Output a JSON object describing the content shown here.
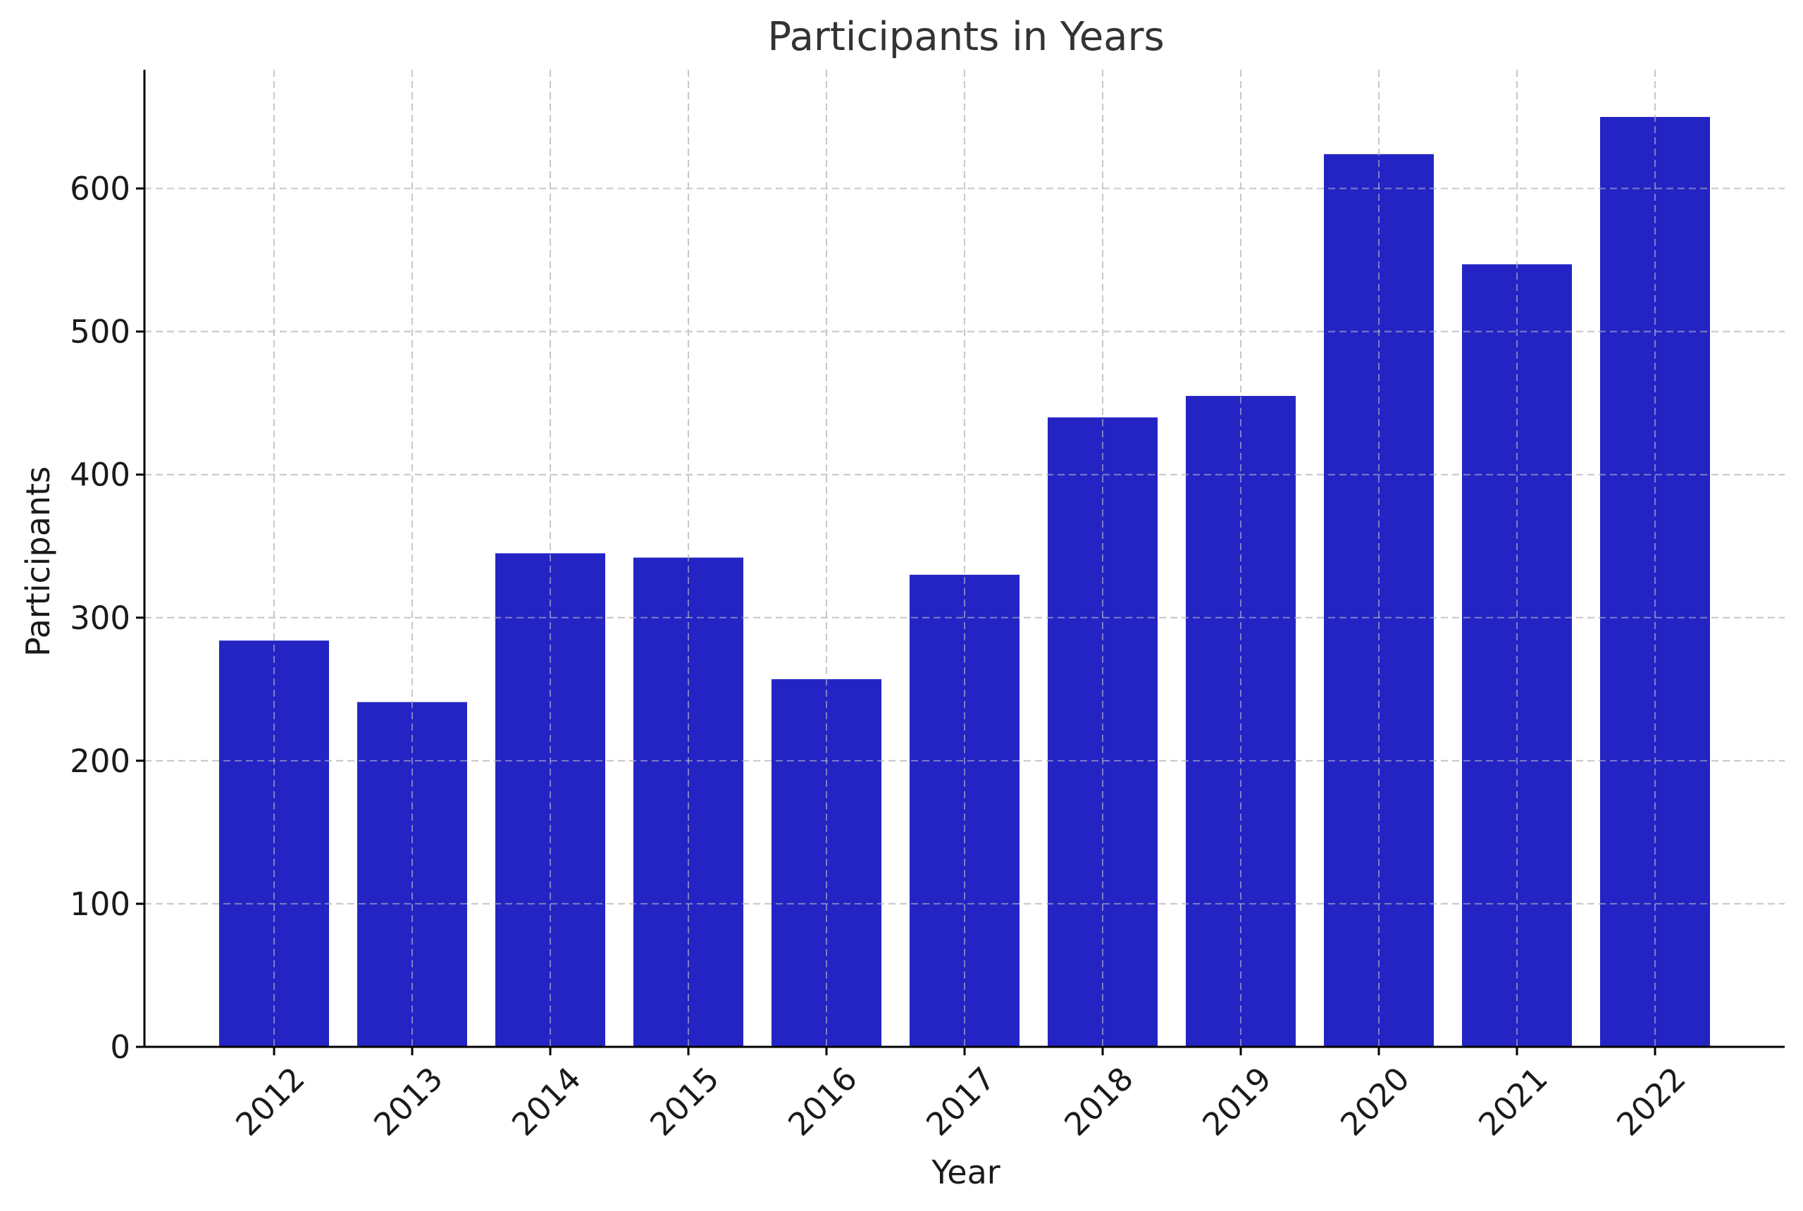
{
  "chart_data": {
    "type": "bar",
    "title": "Participants in Years",
    "xlabel": "Year",
    "ylabel": "Participants",
    "categories": [
      "2012",
      "2013",
      "2014",
      "2015",
      "2016",
      "2017",
      "2018",
      "2019",
      "2020",
      "2021",
      "2022"
    ],
    "values": [
      284,
      241,
      345,
      342,
      257,
      330,
      440,
      455,
      624,
      547,
      650
    ],
    "ylim": [
      0,
      683
    ],
    "yticks": [
      0,
      100,
      200,
      300,
      400,
      500,
      600
    ],
    "grid": true,
    "bar_color": "#2424c4",
    "x_tick_rotation_deg": 45
  }
}
